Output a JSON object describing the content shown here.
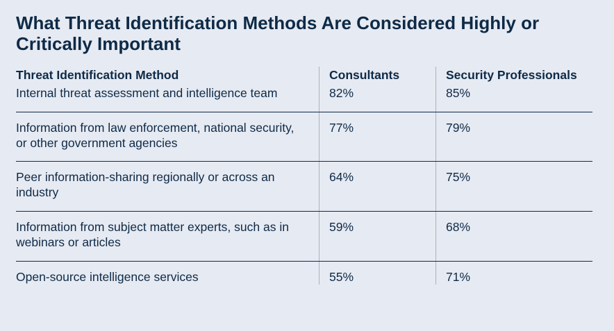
{
  "title": "What Threat Identification Methods Are Considered Highly or Critically Important",
  "table": {
    "headers": [
      "Threat Identification Method",
      "Consultants",
      "Security Professionals"
    ],
    "rows": [
      {
        "method": "Internal threat assessment and intelligence team",
        "consultants": "82%",
        "security_professionals": "85%"
      },
      {
        "method": "Information from law enforcement, national security, or other government agencies",
        "consultants": "77%",
        "security_professionals": "79%"
      },
      {
        "method": "Peer information-sharing regionally or across an industry",
        "consultants": "64%",
        "security_professionals": "75%"
      },
      {
        "method": "Information from subject matter experts, such as in webinars or articles",
        "consultants": "59%",
        "security_professionals": "68%"
      },
      {
        "method": "Open-source intelligence services",
        "consultants": "55%",
        "security_professionals": "71%"
      }
    ]
  },
  "colors": {
    "background": "#e6eaf2",
    "text": "#0e2a47",
    "divider": "#a9b3c2"
  }
}
